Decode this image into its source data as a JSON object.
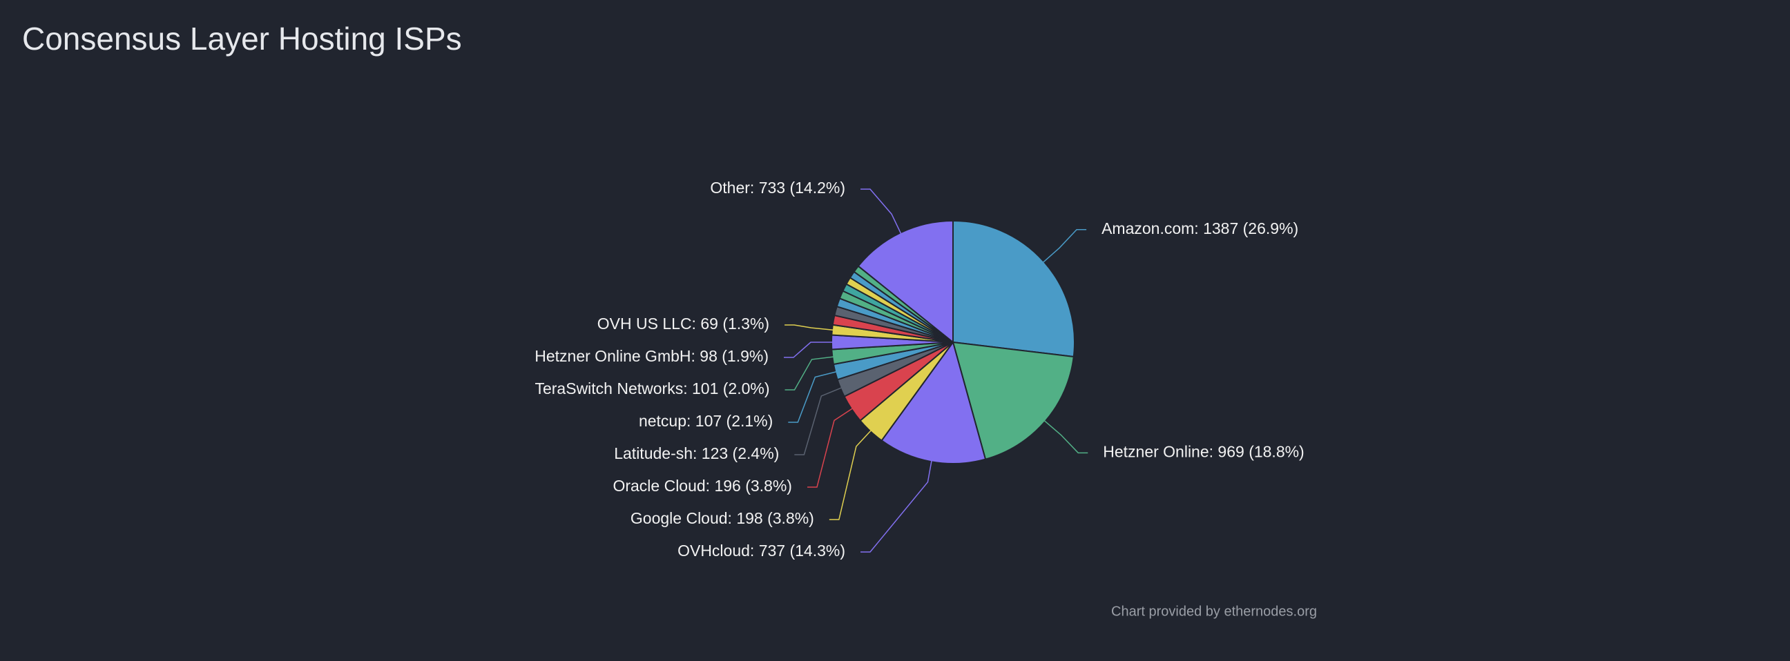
{
  "chart_data": {
    "type": "pie",
    "title": "Consensus Layer Hosting ISPs",
    "credit": "Chart provided by ethernodes.org",
    "categories": [
      "Amazon.com: 1387 (26.9%)",
      "Hetzner Online: 969 (18.8%)",
      "OVHcloud: 737 (14.3%)",
      "Google Cloud: 198 (3.8%)",
      "Oracle Cloud: 196 (3.8%)",
      "Latitude-sh: 123 (2.4%)",
      "netcup: 107 (2.1%)",
      "TeraSwitch Networks: 101 (2.0%)",
      "Hetzner Online GmbH: 98 (1.9%)",
      "OVH US LLC: 69 (1.3%)",
      null,
      null,
      null,
      null,
      null,
      null,
      null,
      null,
      "Other: 733 (14.2%)"
    ],
    "values": [
      1387,
      969,
      737,
      198,
      196,
      123,
      107,
      101,
      98,
      69,
      65,
      62,
      58,
      55,
      52,
      50,
      48,
      48,
      733
    ],
    "colors": [
      "#4a9bc7",
      "#52b086",
      "#8270f0",
      "#e0d050",
      "#d9434e",
      "#5a6270",
      "#4a9bc7",
      "#52b086",
      "#8270f0",
      "#e0d050",
      "#d9434e",
      "#5a6270",
      "#4a9bc7",
      "#52b086",
      "#3fa6a0",
      "#e0d050",
      "#4a9bc7",
      "#52b086",
      "#8270f0"
    ]
  }
}
